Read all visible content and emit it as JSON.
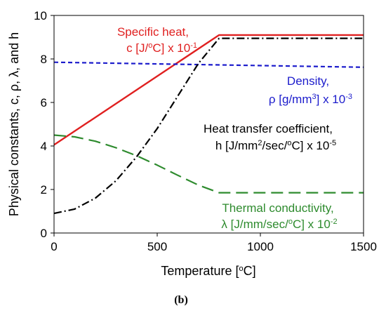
{
  "chart_data": {
    "type": "line",
    "xlabel": "Temperature [°C]",
    "ylabel": "Physical constants, c, ρ, λ, and h",
    "xlim": [
      0,
      1500
    ],
    "ylim": [
      0,
      10
    ],
    "xticks": [
      "0",
      "500",
      "1000",
      "1500"
    ],
    "yticks": [
      "0",
      "2",
      "4",
      "6",
      "8",
      "10"
    ],
    "grid": false,
    "panel_label": "(b)",
    "series": [
      {
        "key": "specific_heat",
        "color": "#e02020",
        "style": "solid",
        "label_lines": [
          "Specific heat,",
          "c [J/°C] x 10-1"
        ],
        "x": [
          0,
          800,
          1500
        ],
        "y": [
          4.05,
          9.1,
          9.1
        ]
      },
      {
        "key": "density",
        "color": "#1c1ccc",
        "style": "dashed",
        "label_lines": [
          "Density,",
          "ρ [g/mm3] x 10-3"
        ],
        "x": [
          0,
          1500
        ],
        "y": [
          7.85,
          7.62
        ]
      },
      {
        "key": "heat_transfer",
        "color": "#000000",
        "style": "dashdot",
        "label_lines": [
          "Heat transfer coefficient,",
          "h [J/mm2/sec/°C] x 10-5"
        ],
        "x": [
          0,
          100,
          200,
          300,
          400,
          500,
          600,
          700,
          800,
          1500
        ],
        "y": [
          0.9,
          1.1,
          1.6,
          2.4,
          3.5,
          4.8,
          6.3,
          7.8,
          8.95,
          8.95
        ]
      },
      {
        "key": "thermal_conductivity",
        "color": "#2e8b2e",
        "style": "longdash",
        "label_lines": [
          "Thermal conductivity,",
          "λ [J/mm/sec/°C] x 10-2"
        ],
        "x": [
          0,
          100,
          200,
          300,
          400,
          500,
          600,
          700,
          800,
          1500
        ],
        "y": [
          4.5,
          4.42,
          4.22,
          3.92,
          3.55,
          3.12,
          2.65,
          2.2,
          1.85,
          1.85
        ]
      }
    ]
  }
}
